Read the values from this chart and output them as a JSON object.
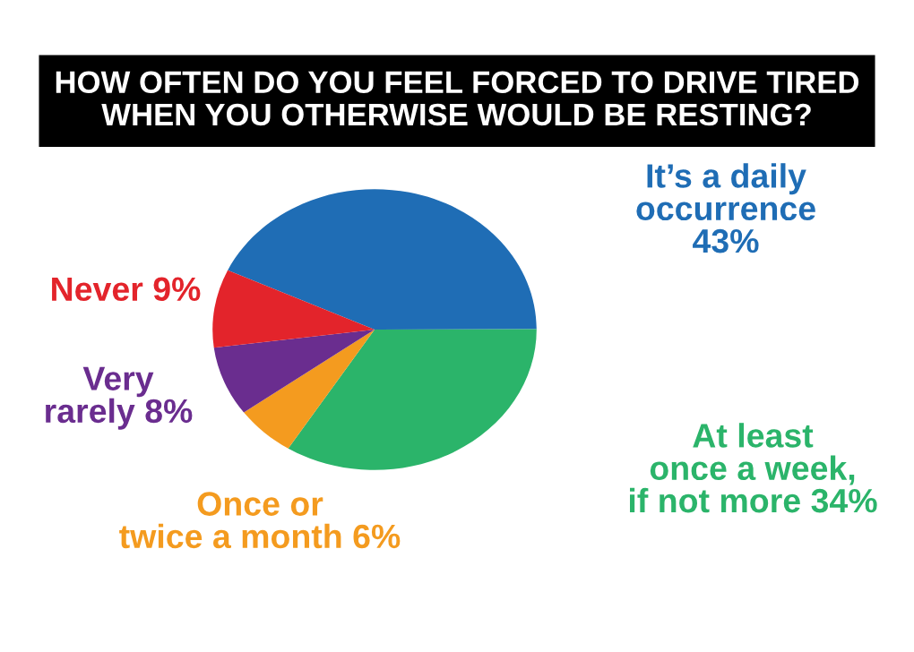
{
  "chart_data": {
    "type": "pie",
    "title": "HOW OFTEN DO YOU FEEL FORCED TO DRIVE TIRED\nWHEN YOU OTHERWISE WOULD BE RESTING?",
    "categories": [
      "It’s a daily\noccurrence",
      "At least\nonce a week,\nif not more",
      "Once or\ntwice a month",
      "Very\nrarely",
      "Never"
    ],
    "values": [
      43,
      34,
      6,
      8,
      9
    ],
    "value_labels": [
      "43%",
      "34%",
      "6%",
      "8%",
      "9%"
    ],
    "colors": [
      "#1f6db5",
      "#2bb46a",
      "#f49b1f",
      "#6a2d8f",
      "#e3242b"
    ]
  }
}
